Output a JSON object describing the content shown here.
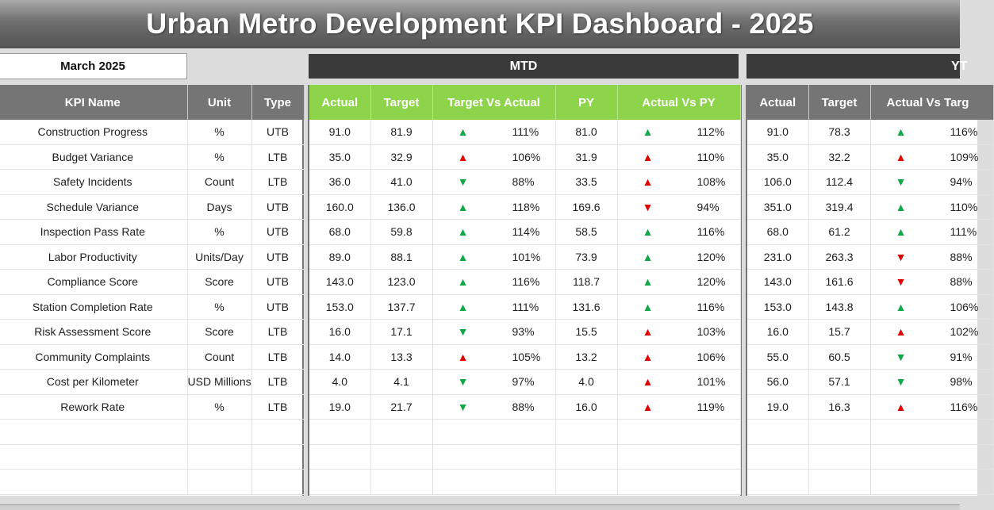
{
  "title": "Urban Metro Development KPI Dashboard - 2025",
  "month": "March 2025",
  "sections": {
    "mtd": "MTD",
    "ytd": "YT"
  },
  "headers": {
    "kpi": [
      "KPI Name",
      "Unit",
      "Type"
    ],
    "mtd": [
      "Actual",
      "Target",
      "Target Vs Actual",
      "PY",
      "Actual Vs PY"
    ],
    "ytd": [
      "Actual",
      "Target",
      "Actual Vs Targ"
    ]
  },
  "colors": {
    "mtd_header": "#8ed44a",
    "grey_header": "#757575",
    "good": "#12a84a",
    "bad": "#e00000"
  },
  "rows": [
    {
      "kpi": "Construction Progress",
      "unit": "%",
      "type": "UTB",
      "mtd": {
        "actual": "91.0",
        "target": "81.9",
        "tva": {
          "arrow": "▲",
          "color": "good",
          "pct": "111%"
        },
        "py": "81.0",
        "avp": {
          "arrow": "▲",
          "color": "good",
          "pct": "112%"
        }
      },
      "ytd": {
        "actual": "91.0",
        "target": "78.3",
        "avt": {
          "arrow": "▲",
          "color": "good",
          "pct": "116%"
        }
      }
    },
    {
      "kpi": "Budget Variance",
      "unit": "%",
      "type": "LTB",
      "mtd": {
        "actual": "35.0",
        "target": "32.9",
        "tva": {
          "arrow": "▲",
          "color": "bad",
          "pct": "106%"
        },
        "py": "31.9",
        "avp": {
          "arrow": "▲",
          "color": "bad",
          "pct": "110%"
        }
      },
      "ytd": {
        "actual": "35.0",
        "target": "32.2",
        "avt": {
          "arrow": "▲",
          "color": "bad",
          "pct": "109%"
        }
      }
    },
    {
      "kpi": "Safety Incidents",
      "unit": "Count",
      "type": "LTB",
      "mtd": {
        "actual": "36.0",
        "target": "41.0",
        "tva": {
          "arrow": "▼",
          "color": "good",
          "pct": "88%"
        },
        "py": "33.5",
        "avp": {
          "arrow": "▲",
          "color": "bad",
          "pct": "108%"
        }
      },
      "ytd": {
        "actual": "106.0",
        "target": "112.4",
        "avt": {
          "arrow": "▼",
          "color": "good",
          "pct": "94%"
        }
      }
    },
    {
      "kpi": "Schedule Variance",
      "unit": "Days",
      "type": "UTB",
      "mtd": {
        "actual": "160.0",
        "target": "136.0",
        "tva": {
          "arrow": "▲",
          "color": "good",
          "pct": "118%"
        },
        "py": "169.6",
        "avp": {
          "arrow": "▼",
          "color": "bad",
          "pct": "94%"
        }
      },
      "ytd": {
        "actual": "351.0",
        "target": "319.4",
        "avt": {
          "arrow": "▲",
          "color": "good",
          "pct": "110%"
        }
      }
    },
    {
      "kpi": "Inspection Pass Rate",
      "unit": "%",
      "type": "UTB",
      "mtd": {
        "actual": "68.0",
        "target": "59.8",
        "tva": {
          "arrow": "▲",
          "color": "good",
          "pct": "114%"
        },
        "py": "58.5",
        "avp": {
          "arrow": "▲",
          "color": "good",
          "pct": "116%"
        }
      },
      "ytd": {
        "actual": "68.0",
        "target": "61.2",
        "avt": {
          "arrow": "▲",
          "color": "good",
          "pct": "111%"
        }
      }
    },
    {
      "kpi": "Labor Productivity",
      "unit": "Units/Day",
      "type": "UTB",
      "mtd": {
        "actual": "89.0",
        "target": "88.1",
        "tva": {
          "arrow": "▲",
          "color": "good",
          "pct": "101%"
        },
        "py": "73.9",
        "avp": {
          "arrow": "▲",
          "color": "good",
          "pct": "120%"
        }
      },
      "ytd": {
        "actual": "231.0",
        "target": "263.3",
        "avt": {
          "arrow": "▼",
          "color": "bad",
          "pct": "88%"
        }
      }
    },
    {
      "kpi": "Compliance Score",
      "unit": "Score",
      "type": "UTB",
      "mtd": {
        "actual": "143.0",
        "target": "123.0",
        "tva": {
          "arrow": "▲",
          "color": "good",
          "pct": "116%"
        },
        "py": "118.7",
        "avp": {
          "arrow": "▲",
          "color": "good",
          "pct": "120%"
        }
      },
      "ytd": {
        "actual": "143.0",
        "target": "161.6",
        "avt": {
          "arrow": "▼",
          "color": "bad",
          "pct": "88%"
        }
      }
    },
    {
      "kpi": "Station Completion Rate",
      "unit": "%",
      "type": "UTB",
      "mtd": {
        "actual": "153.0",
        "target": "137.7",
        "tva": {
          "arrow": "▲",
          "color": "good",
          "pct": "111%"
        },
        "py": "131.6",
        "avp": {
          "arrow": "▲",
          "color": "good",
          "pct": "116%"
        }
      },
      "ytd": {
        "actual": "153.0",
        "target": "143.8",
        "avt": {
          "arrow": "▲",
          "color": "good",
          "pct": "106%"
        }
      }
    },
    {
      "kpi": "Risk Assessment Score",
      "unit": "Score",
      "type": "LTB",
      "mtd": {
        "actual": "16.0",
        "target": "17.1",
        "tva": {
          "arrow": "▼",
          "color": "good",
          "pct": "93%"
        },
        "py": "15.5",
        "avp": {
          "arrow": "▲",
          "color": "bad",
          "pct": "103%"
        }
      },
      "ytd": {
        "actual": "16.0",
        "target": "15.7",
        "avt": {
          "arrow": "▲",
          "color": "bad",
          "pct": "102%"
        }
      }
    },
    {
      "kpi": "Community Complaints",
      "unit": "Count",
      "type": "LTB",
      "mtd": {
        "actual": "14.0",
        "target": "13.3",
        "tva": {
          "arrow": "▲",
          "color": "bad",
          "pct": "105%"
        },
        "py": "13.2",
        "avp": {
          "arrow": "▲",
          "color": "bad",
          "pct": "106%"
        }
      },
      "ytd": {
        "actual": "55.0",
        "target": "60.5",
        "avt": {
          "arrow": "▼",
          "color": "good",
          "pct": "91%"
        }
      }
    },
    {
      "kpi": "Cost per Kilometer",
      "unit": "USD Millions",
      "type": "LTB",
      "mtd": {
        "actual": "4.0",
        "target": "4.1",
        "tva": {
          "arrow": "▼",
          "color": "good",
          "pct": "97%"
        },
        "py": "4.0",
        "avp": {
          "arrow": "▲",
          "color": "bad",
          "pct": "101%"
        }
      },
      "ytd": {
        "actual": "56.0",
        "target": "57.1",
        "avt": {
          "arrow": "▼",
          "color": "good",
          "pct": "98%"
        }
      }
    },
    {
      "kpi": "Rework Rate",
      "unit": "%",
      "type": "LTB",
      "mtd": {
        "actual": "19.0",
        "target": "21.7",
        "tva": {
          "arrow": "▼",
          "color": "good",
          "pct": "88%"
        },
        "py": "16.0",
        "avp": {
          "arrow": "▲",
          "color": "bad",
          "pct": "119%"
        }
      },
      "ytd": {
        "actual": "19.0",
        "target": "16.3",
        "avt": {
          "arrow": "▲",
          "color": "bad",
          "pct": "116%"
        }
      }
    }
  ],
  "empty_rows": 3
}
